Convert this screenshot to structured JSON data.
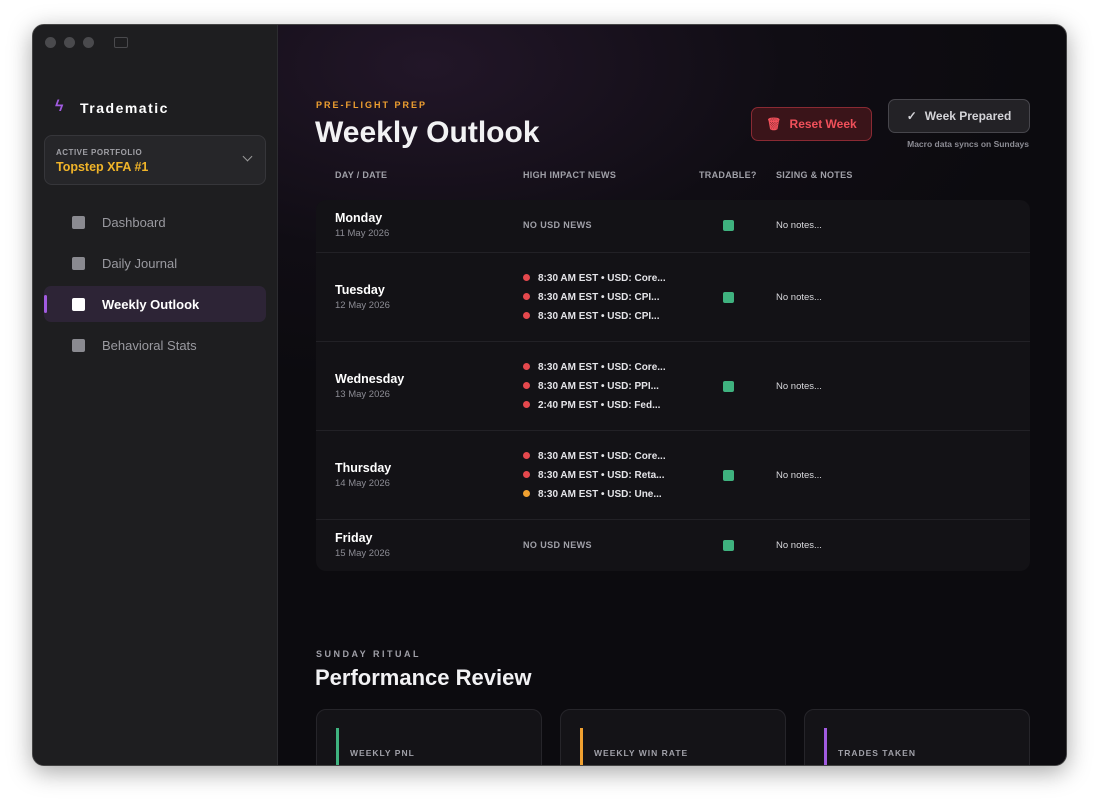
{
  "sidebar": {
    "brand": "Tradematic",
    "portfolio_label": "ACTIVE PORTFOLIO",
    "portfolio_name": "Topstep XFA #1",
    "nav": [
      "Dashboard",
      "Daily Journal",
      "Weekly Outlook",
      "Behavioral Stats"
    ],
    "active": 2
  },
  "header": {
    "eyebrow": "PRE-FLIGHT PREP",
    "title": "Weekly Outlook",
    "reset": "Reset Week",
    "prepared": "Week Prepared",
    "note": "Macro data syncs on Sundays"
  },
  "table": {
    "columns": [
      "DAY / DATE",
      "HIGH IMPACT NEWS",
      "TRADABLE?",
      "SIZING & NOTES"
    ],
    "rows": [
      {
        "day": "Monday",
        "date": "11 May 2026",
        "empty": "NO USD NEWS",
        "notes": "No notes..."
      },
      {
        "day": "Tuesday",
        "date": "12 May 2026",
        "news": [
          {
            "text": "8:30 AM EST • USD: Core...",
            "color": "#e5484d"
          },
          {
            "text": "8:30 AM EST • USD: CPI...",
            "color": "#e5484d"
          },
          {
            "text": "8:30 AM EST • USD: CPI...",
            "color": "#e5484d"
          }
        ],
        "notes": "No notes..."
      },
      {
        "day": "Wednesday",
        "date": "13 May 2026",
        "news": [
          {
            "text": "8:30 AM EST • USD: Core...",
            "color": "#e5484d"
          },
          {
            "text": "8:30 AM EST • USD: PPI...",
            "color": "#e5484d"
          },
          {
            "text": "2:40 PM EST • USD: Fed...",
            "color": "#e5484d"
          }
        ],
        "notes": "No notes..."
      },
      {
        "day": "Thursday",
        "date": "14 May 2026",
        "news": [
          {
            "text": "8:30 AM EST • USD: Core...",
            "color": "#e5484d"
          },
          {
            "text": "8:30 AM EST • USD: Reta...",
            "color": "#e5484d"
          },
          {
            "text": "8:30 AM EST • USD: Une...",
            "color": "#f0a030"
          }
        ],
        "notes": "No notes..."
      },
      {
        "day": "Friday",
        "date": "15 May 2026",
        "empty": "NO USD NEWS",
        "notes": "No notes..."
      }
    ]
  },
  "review": {
    "eyebrow": "SUNDAY RITUAL",
    "title": "Performance Review",
    "cards": [
      {
        "label": "WEEKLY PNL",
        "color": "#3fb27f"
      },
      {
        "label": "WEEKLY WIN RATE",
        "color": "#f0a030"
      },
      {
        "label": "TRADES TAKEN",
        "color": "#a15be0"
      }
    ]
  }
}
